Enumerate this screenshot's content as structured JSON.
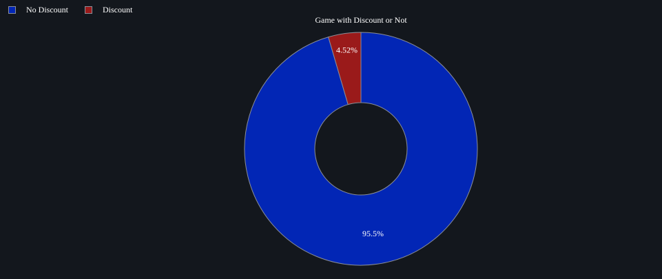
{
  "chart_data": {
    "type": "pie",
    "title": "Game with Discount or Not",
    "hole": true,
    "legend_position": "top-left",
    "categories": [
      "No Discount",
      "Discount"
    ],
    "values": [
      95.48,
      4.52
    ],
    "labels": [
      "95.5%",
      "4.52%"
    ],
    "colors": [
      "#0226b5",
      "#9a1a1a"
    ],
    "border_color": "#8a8f99"
  }
}
